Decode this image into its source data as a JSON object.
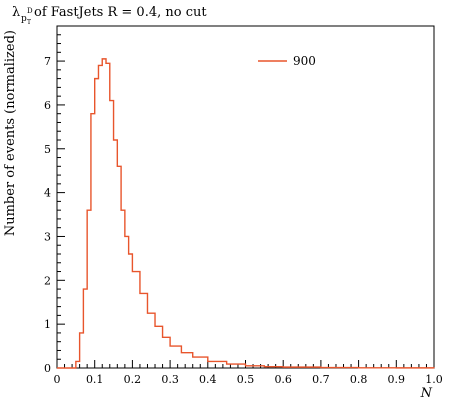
{
  "chart_data": {
    "type": "line",
    "title_symbol": "λ",
    "title_sub": "p",
    "title_subsub": "T",
    "title_sup": "D",
    "title_rest": " of FastJets R = 0.4, no cut",
    "xlabel": "N",
    "ylabel": "Number of events (normalized)",
    "xlim": [
      0,
      1.0
    ],
    "ylim": [
      0,
      7.8
    ],
    "x_ticks": [
      0,
      0.1,
      0.2,
      0.3,
      0.4,
      0.5,
      0.6,
      0.7,
      0.8,
      0.9,
      1.0
    ],
    "x_tick_labels": [
      "0",
      "0.1",
      "0.2",
      "0.3",
      "0.4",
      "0.5",
      "0.6",
      "0.7",
      "0.8",
      "0.9",
      "1.0"
    ],
    "y_ticks": [
      0,
      1,
      2,
      3,
      4,
      5,
      6,
      7
    ],
    "y_tick_labels": [
      "0",
      "1",
      "2",
      "3",
      "4",
      "5",
      "6",
      "7"
    ],
    "grid": false,
    "legend_position": "top-right",
    "series": [
      {
        "name": "900",
        "color": "#e8552c",
        "x": [
          0.0,
          0.04,
          0.05,
          0.06,
          0.07,
          0.08,
          0.09,
          0.1,
          0.11,
          0.12,
          0.13,
          0.14,
          0.15,
          0.16,
          0.17,
          0.18,
          0.19,
          0.2,
          0.22,
          0.24,
          0.26,
          0.28,
          0.3,
          0.33,
          0.36,
          0.4,
          0.45,
          0.5,
          0.55,
          0.6,
          0.7,
          0.8,
          0.9,
          1.0
        ],
        "y": [
          0,
          0,
          0.15,
          0.8,
          1.8,
          3.6,
          5.8,
          6.6,
          6.9,
          7.05,
          6.95,
          6.1,
          5.2,
          4.6,
          3.6,
          3.0,
          2.6,
          2.2,
          1.7,
          1.25,
          0.95,
          0.7,
          0.5,
          0.35,
          0.25,
          0.15,
          0.09,
          0.05,
          0.03,
          0.02,
          0.01,
          0.005,
          0.003,
          0
        ]
      }
    ]
  }
}
